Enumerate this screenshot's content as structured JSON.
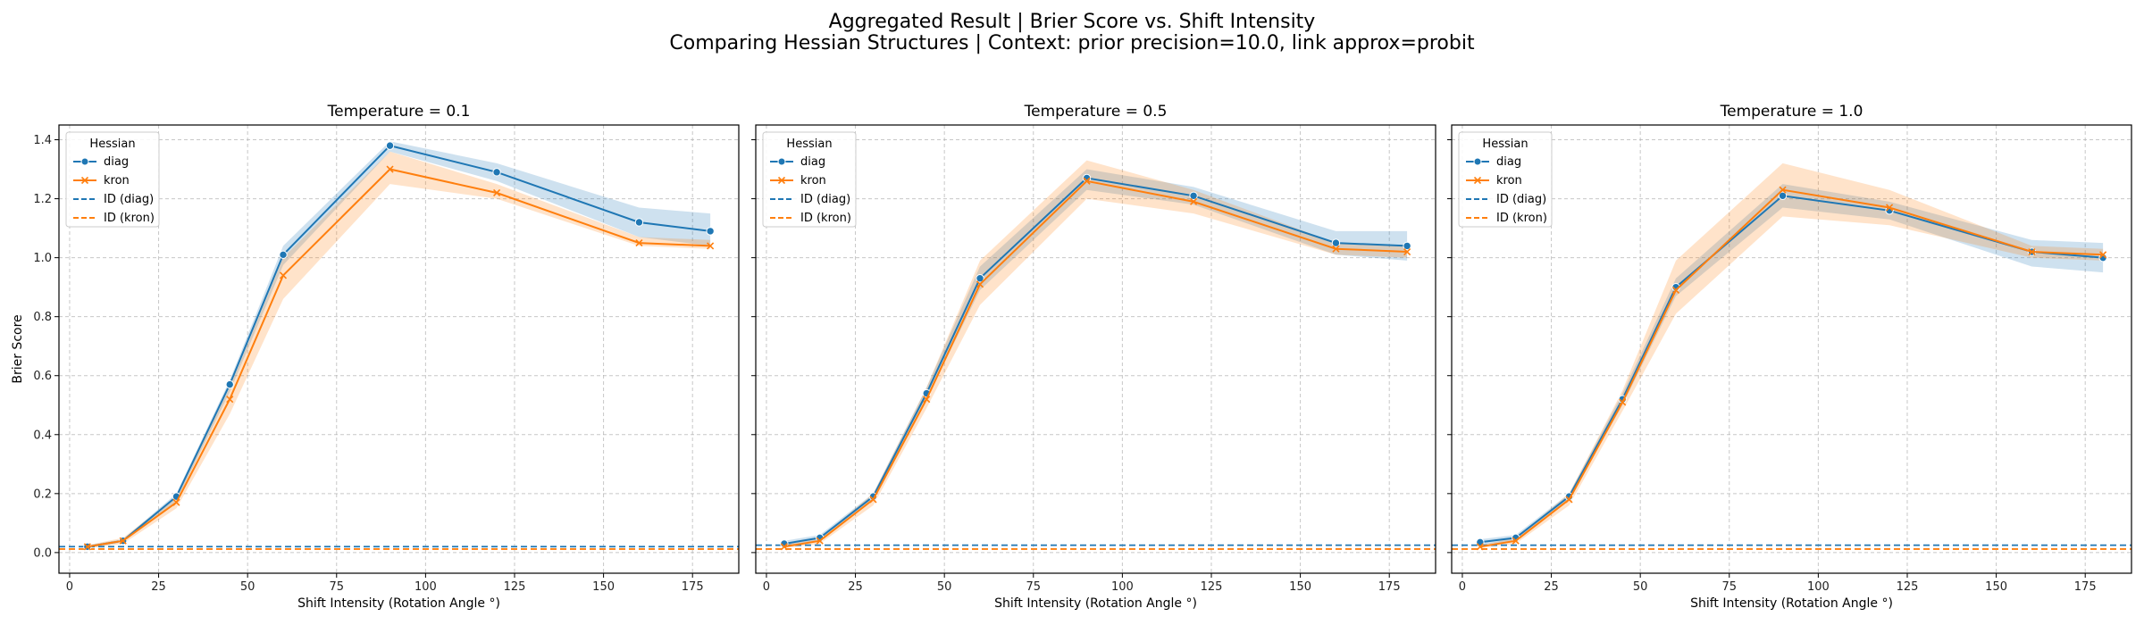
{
  "figure": {
    "title_line1": "Aggregated Result | Brier Score vs. Shift Intensity",
    "title_line2": "Comparing Hessian Structures | Context: prior precision=10.0, link approx=probit"
  },
  "colors": {
    "diag": "#1f77b4",
    "kron": "#ff7f0e",
    "grid": "#b0b0b0"
  },
  "chart_data": [
    {
      "type": "line",
      "title": "Temperature = 0.1",
      "xlabel": "Shift Intensity (Rotation Angle °)",
      "ylabel": "Brier Score",
      "xlim": [
        -3,
        188
      ],
      "ylim": [
        -0.07,
        1.45
      ],
      "xticks": [
        0,
        25,
        50,
        75,
        100,
        125,
        150,
        175
      ],
      "yticks": [
        "0.0",
        "0.2",
        "0.4",
        "0.6",
        "0.8",
        "1.0",
        "1.2",
        "1.4"
      ],
      "grid": true,
      "legend": {
        "title": "Hessian",
        "placement": "top-left",
        "entries": [
          "diag",
          "kron",
          "ID (diag)",
          "ID (kron)"
        ]
      },
      "x": [
        5,
        15,
        30,
        45,
        60,
        90,
        120,
        160,
        180
      ],
      "series": [
        {
          "name": "diag",
          "marker": "o",
          "values": [
            0.02,
            0.04,
            0.19,
            0.57,
            1.01,
            1.38,
            1.29,
            1.12,
            1.09
          ],
          "lower": [
            0.015,
            0.035,
            0.175,
            0.545,
            0.975,
            1.36,
            1.26,
            1.07,
            1.04
          ],
          "upper": [
            0.025,
            0.045,
            0.2,
            0.585,
            1.04,
            1.395,
            1.32,
            1.17,
            1.15
          ]
        },
        {
          "name": "kron",
          "marker": "x",
          "values": [
            0.02,
            0.04,
            0.17,
            0.52,
            0.94,
            1.3,
            1.22,
            1.05,
            1.04
          ],
          "lower": [
            0.015,
            0.03,
            0.15,
            0.47,
            0.86,
            1.25,
            1.2,
            1.04,
            1.03
          ],
          "upper": [
            0.025,
            0.05,
            0.19,
            0.56,
            1.0,
            1.36,
            1.25,
            1.07,
            1.06
          ]
        }
      ],
      "baselines": [
        {
          "name": "ID (diag)",
          "value": 0.02
        },
        {
          "name": "ID (kron)",
          "value": 0.012
        }
      ]
    },
    {
      "type": "line",
      "title": "Temperature = 0.5",
      "xlabel": "Shift Intensity (Rotation Angle °)",
      "ylabel": "",
      "xlim": [
        -3,
        188
      ],
      "ylim": [
        -0.07,
        1.45
      ],
      "xticks": [
        0,
        25,
        50,
        75,
        100,
        125,
        150,
        175
      ],
      "yticks": [],
      "grid": true,
      "legend": {
        "title": "Hessian",
        "placement": "top-left",
        "entries": [
          "diag",
          "kron",
          "ID (diag)",
          "ID (kron)"
        ]
      },
      "x": [
        5,
        15,
        30,
        45,
        60,
        90,
        120,
        160,
        180
      ],
      "series": [
        {
          "name": "diag",
          "marker": "o",
          "values": [
            0.03,
            0.05,
            0.19,
            0.54,
            0.93,
            1.27,
            1.21,
            1.05,
            1.04
          ],
          "lower": [
            0.02,
            0.04,
            0.18,
            0.52,
            0.89,
            1.23,
            1.18,
            1.01,
            0.99
          ],
          "upper": [
            0.04,
            0.06,
            0.2,
            0.56,
            0.97,
            1.3,
            1.24,
            1.09,
            1.09
          ]
        },
        {
          "name": "kron",
          "marker": "x",
          "values": [
            0.02,
            0.04,
            0.18,
            0.52,
            0.91,
            1.26,
            1.19,
            1.03,
            1.02
          ],
          "lower": [
            0.015,
            0.03,
            0.16,
            0.49,
            0.84,
            1.2,
            1.15,
            1.01,
            1.0
          ],
          "upper": [
            0.03,
            0.05,
            0.2,
            0.56,
            0.99,
            1.33,
            1.23,
            1.05,
            1.04
          ]
        }
      ],
      "baselines": [
        {
          "name": "ID (diag)",
          "value": 0.025
        },
        {
          "name": "ID (kron)",
          "value": 0.012
        }
      ]
    },
    {
      "type": "line",
      "title": "Temperature = 1.0",
      "xlabel": "Shift Intensity (Rotation Angle °)",
      "ylabel": "",
      "xlim": [
        -3,
        188
      ],
      "ylim": [
        -0.07,
        1.45
      ],
      "xticks": [
        0,
        25,
        50,
        75,
        100,
        125,
        150,
        175
      ],
      "yticks": [],
      "grid": true,
      "legend": {
        "title": "Hessian",
        "placement": "top-left",
        "entries": [
          "diag",
          "kron",
          "ID (diag)",
          "ID (kron)"
        ]
      },
      "x": [
        5,
        15,
        30,
        45,
        60,
        90,
        120,
        160,
        180
      ],
      "series": [
        {
          "name": "diag",
          "marker": "o",
          "values": [
            0.035,
            0.05,
            0.19,
            0.52,
            0.9,
            1.21,
            1.16,
            1.02,
            1.0
          ],
          "lower": [
            0.025,
            0.04,
            0.18,
            0.5,
            0.87,
            1.17,
            1.13,
            0.97,
            0.95
          ],
          "upper": [
            0.045,
            0.06,
            0.2,
            0.54,
            0.93,
            1.25,
            1.19,
            1.06,
            1.05
          ]
        },
        {
          "name": "kron",
          "marker": "x",
          "values": [
            0.02,
            0.04,
            0.18,
            0.51,
            0.89,
            1.23,
            1.17,
            1.02,
            1.01
          ],
          "lower": [
            0.015,
            0.03,
            0.16,
            0.48,
            0.81,
            1.14,
            1.11,
            1.0,
            0.99
          ],
          "upper": [
            0.025,
            0.05,
            0.2,
            0.55,
            0.99,
            1.32,
            1.23,
            1.04,
            1.03
          ]
        }
      ],
      "baselines": [
        {
          "name": "ID (diag)",
          "value": 0.025
        },
        {
          "name": "ID (kron)",
          "value": 0.012
        }
      ]
    }
  ]
}
